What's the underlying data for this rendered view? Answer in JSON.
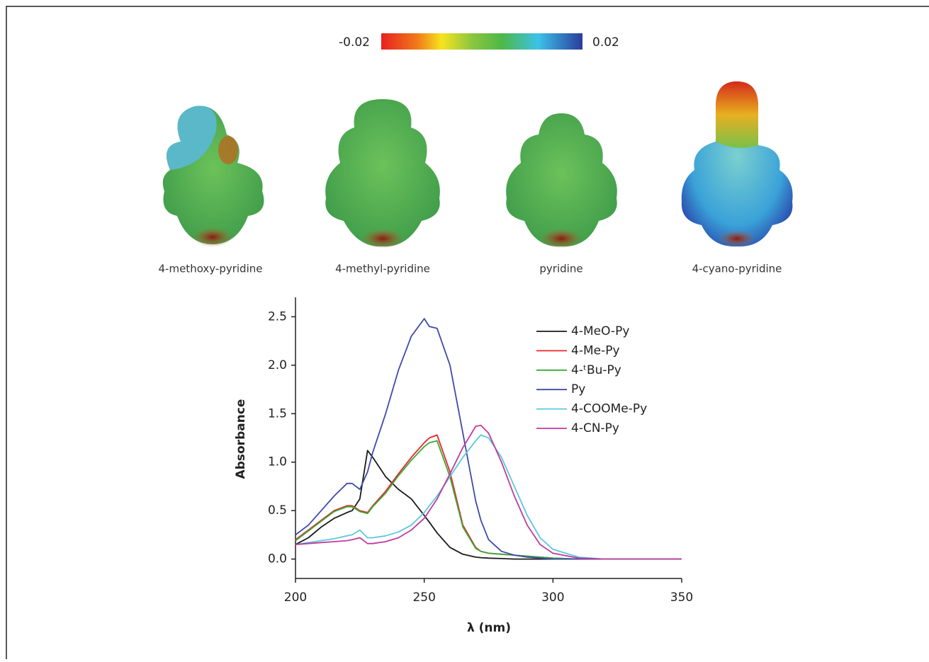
{
  "colorbar": {
    "min": -0.02,
    "max": 0.02
  },
  "molecules": [
    "4-methoxy-pyridine",
    "4-methyl-pyridine",
    "pyridine",
    "4-cyano-pyridine"
  ],
  "chart_data": {
    "type": "line",
    "x_label": "λ (nm)",
    "y_label": "Absorbance",
    "x": [
      200,
      205,
      210,
      215,
      220,
      222,
      225,
      228,
      230,
      235,
      240,
      245,
      250,
      252,
      255,
      260,
      265,
      270,
      272,
      275,
      280,
      285,
      290,
      295,
      300,
      310,
      320,
      330,
      340,
      350
    ],
    "xlim": [
      200,
      350
    ],
    "xticks": [
      200,
      250,
      300,
      350
    ],
    "ylim": [
      -0.2,
      2.7
    ],
    "yticks": [
      {
        "value": 0,
        "label": "0.0"
      },
      0.5,
      {
        "value": 1,
        "label": "1.0"
      },
      1.5,
      {
        "value": 2,
        "label": "2.0"
      },
      2.5
    ],
    "series": [
      {
        "name": "4-MeO-Py",
        "color": "#1a1a1a",
        "values": [
          0.15,
          0.22,
          0.33,
          0.42,
          0.48,
          0.5,
          0.62,
          1.12,
          1.05,
          0.85,
          0.72,
          0.62,
          0.45,
          0.38,
          0.27,
          0.12,
          0.05,
          0.02,
          0.015,
          0.01,
          0.005,
          0,
          0,
          0,
          0,
          0,
          0,
          0,
          0,
          0
        ]
      },
      {
        "name": "4-Me-Py",
        "color": "#e8262a",
        "values": [
          0.2,
          0.3,
          0.4,
          0.5,
          0.55,
          0.55,
          0.5,
          0.48,
          0.55,
          0.7,
          0.88,
          1.05,
          1.2,
          1.25,
          1.28,
          0.9,
          0.35,
          0.12,
          0.08,
          0.06,
          0.05,
          0.04,
          0.03,
          0.02,
          0.01,
          0,
          0,
          0,
          0,
          0
        ]
      },
      {
        "name": "4-ᵗBu-Py",
        "color": "#3aa935",
        "values": [
          0.19,
          0.29,
          0.39,
          0.49,
          0.54,
          0.54,
          0.49,
          0.47,
          0.54,
          0.68,
          0.86,
          1.02,
          1.16,
          1.2,
          1.22,
          0.85,
          0.33,
          0.11,
          0.08,
          0.06,
          0.05,
          0.04,
          0.03,
          0.02,
          0.01,
          0,
          0,
          0,
          0,
          0
        ]
      },
      {
        "name": "Py",
        "color": "#3f4aa8",
        "values": [
          0.25,
          0.35,
          0.5,
          0.65,
          0.78,
          0.78,
          0.72,
          0.9,
          1.1,
          1.5,
          1.95,
          2.3,
          2.48,
          2.4,
          2.38,
          2.0,
          1.3,
          0.6,
          0.4,
          0.2,
          0.08,
          0.04,
          0.02,
          0.01,
          0,
          0,
          0,
          0,
          0,
          0
        ]
      },
      {
        "name": "4-COOMe-Py",
        "color": "#5bc8dc",
        "values": [
          0.15,
          0.17,
          0.19,
          0.21,
          0.24,
          0.25,
          0.3,
          0.22,
          0.22,
          0.24,
          0.28,
          0.35,
          0.48,
          0.55,
          0.65,
          0.85,
          1.05,
          1.22,
          1.28,
          1.25,
          1.05,
          0.75,
          0.45,
          0.22,
          0.1,
          0.02,
          0,
          0,
          0,
          0
        ]
      },
      {
        "name": "4-CN-Py",
        "color": "#c03a9c",
        "values": [
          0.15,
          0.16,
          0.17,
          0.18,
          0.19,
          0.2,
          0.22,
          0.16,
          0.16,
          0.18,
          0.22,
          0.3,
          0.42,
          0.5,
          0.62,
          0.88,
          1.15,
          1.37,
          1.38,
          1.3,
          1.0,
          0.65,
          0.35,
          0.15,
          0.06,
          0.01,
          0,
          0,
          0,
          0
        ]
      }
    ]
  }
}
